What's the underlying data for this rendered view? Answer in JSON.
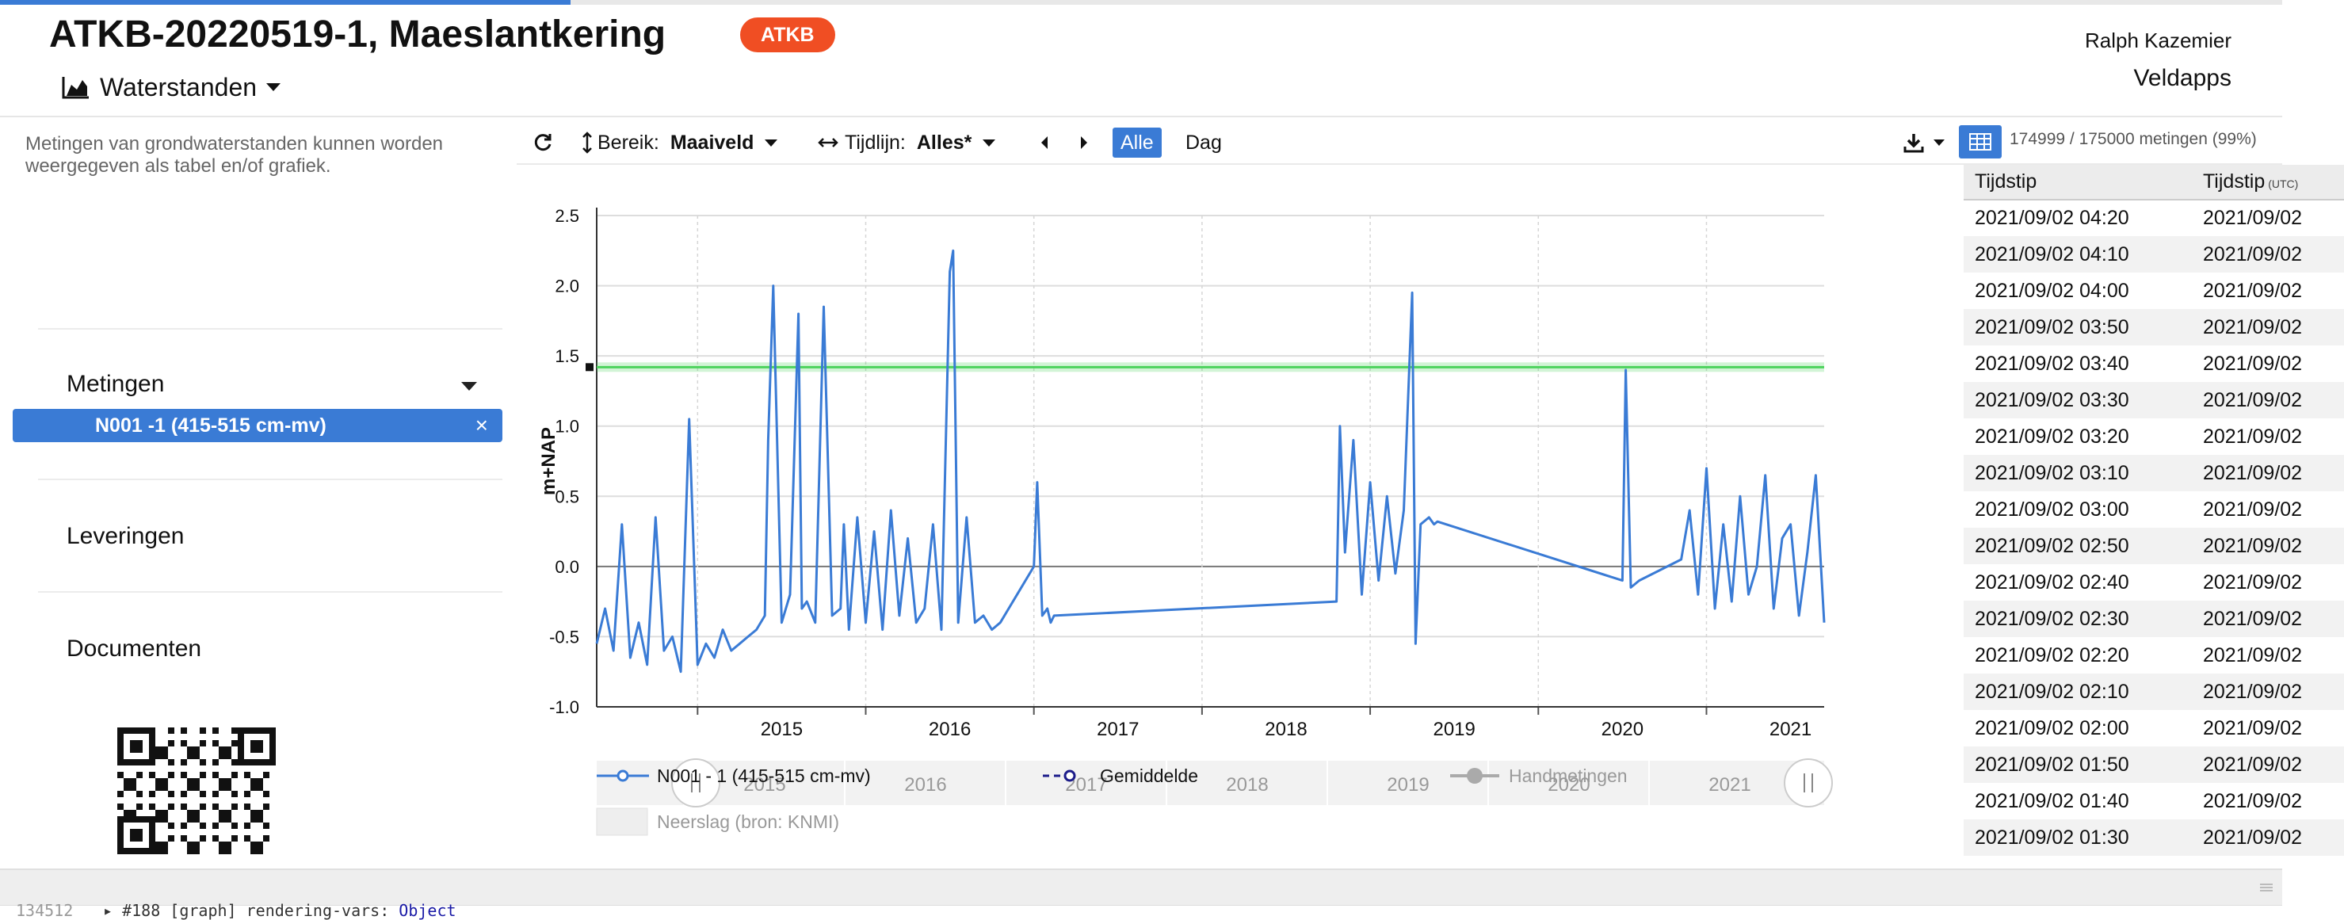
{
  "header": {
    "title": "ATKB-20220519-1, Maeslantkering",
    "badge": "ATKB",
    "view_label": "Waterstanden",
    "user_name": "Ralph Kazemier",
    "app_name": "Veldapps"
  },
  "page_progress": 0.25,
  "sidebar": {
    "description": "Metingen van grondwaterstanden kunnen worden weergegeven als tabel en/of grafiek.",
    "sections": [
      "Metingen",
      "Leveringen",
      "Documenten"
    ],
    "selected_series": "N001 -1 (415-515 cm-mv)",
    "remove_glyph": "×"
  },
  "toolbar": {
    "bereik_label": "Bereik:",
    "bereik_value": "Maaiveld",
    "tijdlijn_label": "Tijdlijn:",
    "tijdlijn_value": "Alles*",
    "alle_label": "Alle",
    "dag_label": "Dag",
    "count_label": "174999 / 175000 metingen (99%)"
  },
  "icons": {
    "refresh": "refresh-icon",
    "range": "vertical-arrows-icon",
    "timeline": "horizontal-arrows-icon",
    "prev": "chevron-left-icon",
    "next": "chevron-right-icon",
    "download": "download-icon",
    "table": "table-icon",
    "view": "area-chart-icon"
  },
  "colors": {
    "accent": "#3a7bd5",
    "badge": "#f04e23",
    "series": "#3a7bd5",
    "threshold": "#4cd35c",
    "mean": "#1c1c8a",
    "manual": "#aaaaaa"
  },
  "table": {
    "headers": [
      "Tijdstip",
      "Tijdstip"
    ],
    "header_unit": "(UTC)",
    "rows": [
      [
        "2021/09/02 04:20",
        "2021/09/02"
      ],
      [
        "2021/09/02 04:10",
        "2021/09/02"
      ],
      [
        "2021/09/02 04:00",
        "2021/09/02"
      ],
      [
        "2021/09/02 03:50",
        "2021/09/02"
      ],
      [
        "2021/09/02 03:40",
        "2021/09/02"
      ],
      [
        "2021/09/02 03:30",
        "2021/09/02"
      ],
      [
        "2021/09/02 03:20",
        "2021/09/02"
      ],
      [
        "2021/09/02 03:10",
        "2021/09/02"
      ],
      [
        "2021/09/02 03:00",
        "2021/09/02"
      ],
      [
        "2021/09/02 02:50",
        "2021/09/02"
      ],
      [
        "2021/09/02 02:40",
        "2021/09/02"
      ],
      [
        "2021/09/02 02:30",
        "2021/09/02"
      ],
      [
        "2021/09/02 02:20",
        "2021/09/02"
      ],
      [
        "2021/09/02 02:10",
        "2021/09/02"
      ],
      [
        "2021/09/02 02:00",
        "2021/09/02"
      ],
      [
        "2021/09/02 01:50",
        "2021/09/02"
      ],
      [
        "2021/09/02 01:40",
        "2021/09/02"
      ],
      [
        "2021/09/02 01:30",
        "2021/09/02"
      ]
    ]
  },
  "chart_data": {
    "type": "line",
    "ylabel": "m+NAP",
    "ylim": [
      -1.0,
      2.5
    ],
    "yticks": [
      "2.5",
      "2.0",
      "1.5",
      "1.0",
      "0.5",
      "0.0",
      "-0.5",
      "-1.0"
    ],
    "xlim": [
      2014.4,
      2021.7
    ],
    "xticks": [
      "2015",
      "2016",
      "2017",
      "2018",
      "2019",
      "2020",
      "2021"
    ],
    "navigator_ticks": [
      "2015",
      "2016",
      "2017",
      "2018",
      "2019",
      "2020",
      "2021"
    ],
    "grid": true,
    "threshold": 1.42,
    "legend": {
      "series": "N001 - 1 (415-515 cm-mv)",
      "mean": "Gemiddelde",
      "manual": "Handmetingen",
      "rain": "Neerslag (bron: KNMI)"
    },
    "series": [
      {
        "name": "N001 - 1 (415-515 cm-mv)",
        "x": [
          2014.4,
          2014.45,
          2014.5,
          2014.55,
          2014.6,
          2014.65,
          2014.7,
          2014.75,
          2014.8,
          2014.85,
          2014.9,
          2014.95,
          2015.0,
          2015.05,
          2015.1,
          2015.15,
          2015.2,
          2015.25,
          2015.3,
          2015.35,
          2015.4,
          2015.42,
          2015.45,
          2015.5,
          2015.55,
          2015.6,
          2015.62,
          2015.65,
          2015.7,
          2015.75,
          2015.8,
          2015.85,
          2015.87,
          2015.9,
          2015.95,
          2016.0,
          2016.05,
          2016.1,
          2016.15,
          2016.2,
          2016.25,
          2016.3,
          2016.35,
          2016.4,
          2016.45,
          2016.5,
          2016.52,
          2016.55,
          2016.6,
          2016.65,
          2016.7,
          2016.75,
          2016.8,
          2016.85,
          2016.9,
          2017.0,
          2017.02,
          2017.05,
          2017.08,
          2017.1,
          2017.12,
          2018.8,
          2018.82,
          2018.85,
          2018.9,
          2018.95,
          2019.0,
          2019.05,
          2019.1,
          2019.15,
          2019.2,
          2019.25,
          2019.27,
          2019.3,
          2019.35,
          2019.38,
          2019.4,
          2020.5,
          2020.52,
          2020.55,
          2020.6,
          2020.85,
          2020.9,
          2020.95,
          2021.0,
          2021.05,
          2021.1,
          2021.15,
          2021.2,
          2021.25,
          2021.3,
          2021.35,
          2021.4,
          2021.45,
          2021.5,
          2021.55,
          2021.6,
          2021.65,
          2021.7
        ],
        "y": [
          -0.55,
          -0.3,
          -0.6,
          0.3,
          -0.65,
          -0.4,
          -0.7,
          0.35,
          -0.6,
          -0.5,
          -0.75,
          1.05,
          -0.7,
          -0.55,
          -0.65,
          -0.45,
          -0.6,
          -0.55,
          -0.5,
          -0.45,
          -0.35,
          0.9,
          2.0,
          -0.4,
          -0.2,
          1.8,
          -0.3,
          -0.25,
          -0.4,
          1.85,
          -0.35,
          -0.3,
          0.3,
          -0.45,
          0.35,
          -0.4,
          0.25,
          -0.45,
          0.4,
          -0.35,
          0.2,
          -0.4,
          -0.3,
          0.3,
          -0.45,
          2.1,
          2.25,
          -0.4,
          0.35,
          -0.4,
          -0.35,
          -0.45,
          -0.4,
          -0.3,
          -0.2,
          0.0,
          0.6,
          -0.35,
          -0.3,
          -0.4,
          -0.35,
          -0.25,
          1.0,
          0.1,
          0.9,
          -0.2,
          0.6,
          -0.1,
          0.5,
          -0.05,
          0.4,
          1.95,
          -0.55,
          0.3,
          0.35,
          0.3,
          0.32,
          -0.1,
          1.4,
          -0.15,
          -0.1,
          0.05,
          0.4,
          -0.2,
          0.7,
          -0.3,
          0.3,
          -0.25,
          0.5,
          -0.2,
          0.0,
          0.65,
          -0.3,
          0.2,
          0.3,
          -0.35,
          0.1,
          0.65,
          -0.4
        ]
      }
    ]
  },
  "footer": {
    "console_line_number": "134512",
    "console_text": "#188 [graph] rendering-vars:",
    "console_object": "Object"
  }
}
